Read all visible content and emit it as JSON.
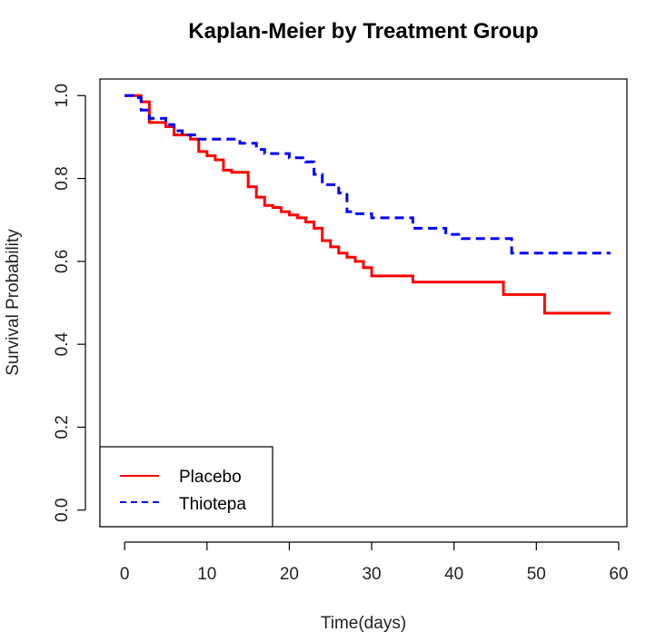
{
  "chart_data": {
    "type": "line",
    "title": "Kaplan-Meier by Treatment Group",
    "xlabel": "Time(days)",
    "ylabel": "Survival Probability",
    "xlim": [
      -3,
      61
    ],
    "ylim": [
      -0.04,
      1.04
    ],
    "xticks": [
      0,
      10,
      20,
      30,
      40,
      50,
      60
    ],
    "yticks": [
      0.0,
      0.2,
      0.4,
      0.6,
      0.8,
      1.0
    ],
    "x_tick_labels": [
      "0",
      "10",
      "20",
      "30",
      "40",
      "50",
      "60"
    ],
    "y_tick_labels": [
      "0.0",
      "0.2",
      "0.4",
      "0.6",
      "0.8",
      "1.0"
    ],
    "legend_position": "bottom-left",
    "series": [
      {
        "name": "Placebo",
        "color": "#ff0000",
        "dash": "solid",
        "steps": [
          [
            0,
            1.0
          ],
          [
            2,
            0.985
          ],
          [
            3,
            0.935
          ],
          [
            5,
            0.925
          ],
          [
            6,
            0.905
          ],
          [
            8,
            0.895
          ],
          [
            9,
            0.865
          ],
          [
            10,
            0.855
          ],
          [
            11,
            0.845
          ],
          [
            12,
            0.82
          ],
          [
            13,
            0.815
          ],
          [
            15,
            0.78
          ],
          [
            16,
            0.755
          ],
          [
            17,
            0.735
          ],
          [
            18,
            0.73
          ],
          [
            19,
            0.72
          ],
          [
            20,
            0.712
          ],
          [
            21,
            0.705
          ],
          [
            22,
            0.695
          ],
          [
            23,
            0.68
          ],
          [
            24,
            0.65
          ],
          [
            25,
            0.635
          ],
          [
            26,
            0.62
          ],
          [
            27,
            0.61
          ],
          [
            28,
            0.6
          ],
          [
            29,
            0.585
          ],
          [
            30,
            0.565
          ],
          [
            35,
            0.55
          ],
          [
            46,
            0.52
          ],
          [
            51,
            0.475
          ],
          [
            59,
            0.475
          ]
        ]
      },
      {
        "name": "Thiotepa",
        "color": "#0000ff",
        "dash": "dashed",
        "steps": [
          [
            0,
            1.0
          ],
          [
            1,
            0.995
          ],
          [
            2,
            0.965
          ],
          [
            3,
            0.945
          ],
          [
            5,
            0.93
          ],
          [
            6,
            0.915
          ],
          [
            7,
            0.905
          ],
          [
            9,
            0.895
          ],
          [
            14,
            0.885
          ],
          [
            16,
            0.87
          ],
          [
            17,
            0.86
          ],
          [
            20,
            0.85
          ],
          [
            22,
            0.84
          ],
          [
            23,
            0.81
          ],
          [
            24,
            0.785
          ],
          [
            26,
            0.765
          ],
          [
            27,
            0.72
          ],
          [
            28,
            0.715
          ],
          [
            30,
            0.705
          ],
          [
            35,
            0.68
          ],
          [
            39,
            0.665
          ],
          [
            41,
            0.655
          ],
          [
            47,
            0.62
          ],
          [
            59,
            0.62
          ]
        ]
      }
    ]
  }
}
